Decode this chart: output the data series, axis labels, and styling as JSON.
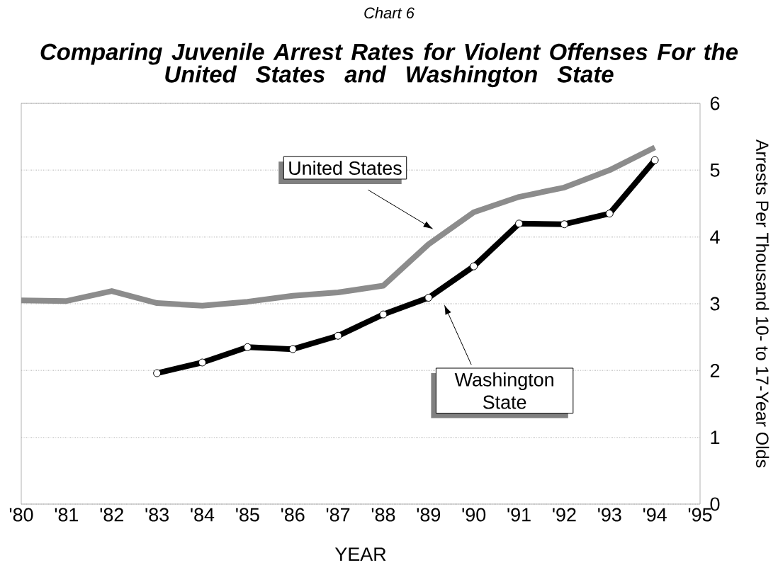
{
  "chart_data": {
    "type": "line",
    "title": "Comparing Juvenile Arrest Rates for Violent Offenses For the United States and Washington State",
    "annotations": [
      "Chart 6"
    ],
    "xlabel": "YEAR",
    "ylabel": "Arrests Per Thousand 10- to 17-Year Olds",
    "xlim": [
      1980,
      1995
    ],
    "xticks": [
      {
        "value": 1980,
        "label": "'80"
      },
      {
        "value": 1981,
        "label": "'81"
      },
      {
        "value": 1982,
        "label": "'82"
      },
      {
        "value": 1983,
        "label": "'83"
      },
      {
        "value": 1984,
        "label": "'84"
      },
      {
        "value": 1985,
        "label": "'85"
      },
      {
        "value": 1986,
        "label": "'86"
      },
      {
        "value": 1987,
        "label": "'87"
      },
      {
        "value": 1988,
        "label": "'88"
      },
      {
        "value": 1989,
        "label": "'89"
      },
      {
        "value": 1990,
        "label": "'90"
      },
      {
        "value": 1991,
        "label": "'91"
      },
      {
        "value": 1992,
        "label": "'92"
      },
      {
        "value": 1993,
        "label": "'93"
      },
      {
        "value": 1994,
        "label": "'94"
      },
      {
        "value": 1995,
        "label": "'95"
      }
    ],
    "ylim": [
      0,
      6
    ],
    "yticks": [
      0,
      1,
      2,
      3,
      4,
      5,
      6
    ],
    "grid": "y",
    "series": [
      {
        "name": "United States",
        "color": "#8c8c8c",
        "marker": "none",
        "x": [
          1980,
          1981,
          1982,
          1983,
          1984,
          1985,
          1986,
          1987,
          1988,
          1989,
          1990,
          1991,
          1992,
          1993,
          1994
        ],
        "values": [
          3.05,
          3.04,
          3.19,
          3.01,
          2.97,
          3.03,
          3.12,
          3.17,
          3.27,
          3.89,
          4.37,
          4.6,
          4.74,
          5.0,
          5.34
        ]
      },
      {
        "name": "Washington State",
        "color": "#000000",
        "marker": "circle",
        "x": [
          1983,
          1984,
          1985,
          1986,
          1987,
          1988,
          1989,
          1990,
          1991,
          1992,
          1993,
          1994
        ],
        "values": [
          1.96,
          2.12,
          2.35,
          2.32,
          2.52,
          2.84,
          3.09,
          3.56,
          4.2,
          4.19,
          4.35,
          5.15
        ]
      }
    ]
  }
}
